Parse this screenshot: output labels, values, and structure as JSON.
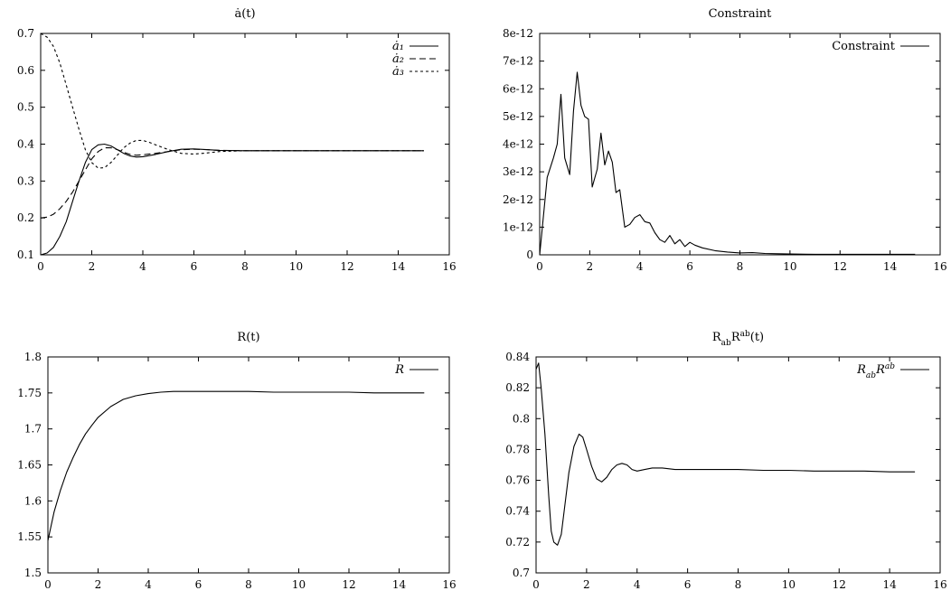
{
  "chart_data": [
    {
      "type": "line",
      "title": "ȧ(t)",
      "xlim": [
        0,
        16
      ],
      "ylim": [
        0.1,
        0.7
      ],
      "xticks": [
        0,
        2,
        4,
        6,
        8,
        10,
        12,
        14,
        16
      ],
      "yticks": [
        0.1,
        0.2,
        0.3,
        0.4,
        0.5,
        0.6,
        0.7
      ],
      "ytick_labels": [
        "0.1",
        "0.2",
        "0.3",
        "0.4",
        "0.5",
        "0.6",
        "0.7"
      ],
      "grid": false,
      "legend_position": "top-right",
      "series": [
        {
          "name": "ȧ₁",
          "dash": "solid",
          "x": [
            0,
            0.25,
            0.5,
            0.75,
            1,
            1.25,
            1.5,
            1.75,
            2,
            2.25,
            2.5,
            2.75,
            3,
            3.25,
            3.5,
            3.75,
            4,
            4.5,
            5,
            5.5,
            6,
            6.5,
            7,
            8,
            9,
            10,
            11,
            12,
            13,
            14,
            15
          ],
          "y": [
            0.1,
            0.105,
            0.12,
            0.15,
            0.19,
            0.245,
            0.3,
            0.35,
            0.385,
            0.398,
            0.4,
            0.395,
            0.385,
            0.375,
            0.368,
            0.365,
            0.366,
            0.372,
            0.38,
            0.386,
            0.387,
            0.385,
            0.383,
            0.382,
            0.382,
            0.382,
            0.382,
            0.382,
            0.382,
            0.382,
            0.382
          ]
        },
        {
          "name": "ȧ₂",
          "dash": "long",
          "x": [
            0,
            0.25,
            0.5,
            0.75,
            1,
            1.25,
            1.5,
            1.75,
            2,
            2.25,
            2.5,
            2.75,
            3,
            3.25,
            3.5,
            3.75,
            4,
            4.5,
            5,
            5.5,
            6,
            6.5,
            7,
            8,
            9,
            10,
            11,
            12,
            13,
            14,
            15
          ],
          "y": [
            0.2,
            0.202,
            0.21,
            0.225,
            0.245,
            0.27,
            0.3,
            0.33,
            0.36,
            0.38,
            0.39,
            0.39,
            0.385,
            0.378,
            0.372,
            0.37,
            0.371,
            0.375,
            0.38,
            0.385,
            0.386,
            0.385,
            0.383,
            0.382,
            0.382,
            0.382,
            0.382,
            0.382,
            0.382,
            0.382,
            0.382
          ]
        },
        {
          "name": "ȧ₃",
          "dash": "short",
          "x": [
            0,
            0.25,
            0.5,
            0.75,
            1,
            1.25,
            1.5,
            1.75,
            2,
            2.25,
            2.5,
            2.75,
            3,
            3.25,
            3.5,
            3.75,
            4,
            4.25,
            4.5,
            5,
            5.5,
            6,
            6.5,
            7,
            8,
            9,
            10,
            11,
            12,
            13,
            14,
            15
          ],
          "y": [
            0.7,
            0.69,
            0.665,
            0.62,
            0.56,
            0.5,
            0.44,
            0.385,
            0.35,
            0.335,
            0.336,
            0.35,
            0.37,
            0.39,
            0.403,
            0.41,
            0.41,
            0.405,
            0.398,
            0.385,
            0.375,
            0.373,
            0.376,
            0.38,
            0.382,
            0.382,
            0.382,
            0.382,
            0.382,
            0.382,
            0.382,
            0.382
          ]
        }
      ]
    },
    {
      "type": "line",
      "title": "Constraint",
      "xlim": [
        0,
        16
      ],
      "ylim": [
        0,
        8e-12
      ],
      "xticks": [
        0,
        2,
        4,
        6,
        8,
        10,
        12,
        14,
        16
      ],
      "yticks": [
        0,
        1e-12,
        2e-12,
        3e-12,
        4e-12,
        5e-12,
        6e-12,
        7e-12,
        8e-12
      ],
      "ytick_labels": [
        "0",
        "1e-12",
        "2e-12",
        "3e-12",
        "4e-12",
        "5e-12",
        "6e-12",
        "7e-12",
        "8e-12"
      ],
      "grid": false,
      "legend_position": "top-right",
      "series": [
        {
          "name": "Constraint",
          "dash": "solid",
          "x": [
            0,
            0.3,
            0.55,
            0.7,
            0.85,
            1.0,
            1.2,
            1.35,
            1.5,
            1.65,
            1.8,
            1.95,
            2.1,
            2.3,
            2.45,
            2.6,
            2.75,
            2.9,
            3.05,
            3.2,
            3.4,
            3.6,
            3.8,
            4.0,
            4.2,
            4.4,
            4.6,
            4.8,
            5.0,
            5.2,
            5.4,
            5.6,
            5.8,
            6.0,
            6.2,
            6.5,
            7.0,
            7.5,
            8.0,
            8.5,
            9,
            9.5,
            10,
            11,
            12,
            13,
            14,
            15
          ],
          "y": [
            0,
            2.8e-12,
            3.5e-12,
            4e-12,
            5.8e-12,
            3.5e-12,
            2.9e-12,
            5.2e-12,
            6.6e-12,
            5.4e-12,
            5e-12,
            4.9e-12,
            2.45e-12,
            3.1e-12,
            4.4e-12,
            3.25e-12,
            3.75e-12,
            3.35e-12,
            2.25e-12,
            2.35e-12,
            1e-12,
            1.1e-12,
            1.35e-12,
            1.45e-12,
            1.2e-12,
            1.15e-12,
            8e-13,
            5.5e-13,
            4.5e-13,
            7e-13,
            4e-13,
            5.5e-13,
            3e-13,
            4.5e-13,
            3.5e-13,
            2.5e-13,
            1.5e-13,
            1e-13,
            7e-14,
            8e-14,
            5e-14,
            4e-14,
            3e-14,
            2e-14,
            2e-14,
            2e-14,
            2e-14,
            2e-14
          ]
        }
      ]
    },
    {
      "type": "line",
      "title": "R(t)",
      "xlim": [
        0,
        16
      ],
      "ylim": [
        1.5,
        1.8
      ],
      "xticks": [
        0,
        2,
        4,
        6,
        8,
        10,
        12,
        14,
        16
      ],
      "yticks": [
        1.5,
        1.55,
        1.6,
        1.65,
        1.7,
        1.75,
        1.8
      ],
      "ytick_labels": [
        "1.5",
        "1.55",
        "1.6",
        "1.65",
        "1.7",
        "1.75",
        "1.8"
      ],
      "grid": false,
      "legend_position": "top-right",
      "series": [
        {
          "name": "R",
          "dash": "solid",
          "x": [
            0,
            0.25,
            0.5,
            0.75,
            1,
            1.25,
            1.5,
            1.75,
            2,
            2.5,
            3,
            3.5,
            4,
            4.5,
            5,
            6,
            7,
            8,
            9,
            10,
            11,
            12,
            13,
            14,
            15
          ],
          "y": [
            1.545,
            1.585,
            1.615,
            1.64,
            1.66,
            1.678,
            1.693,
            1.705,
            1.716,
            1.731,
            1.741,
            1.746,
            1.749,
            1.751,
            1.752,
            1.752,
            1.752,
            1.752,
            1.751,
            1.751,
            1.751,
            1.751,
            1.75,
            1.75,
            1.75
          ]
        }
      ]
    },
    {
      "type": "line",
      "title": "R_{ab}R^{ab}(t)",
      "xlim": [
        0,
        16
      ],
      "ylim": [
        0.7,
        0.84
      ],
      "xticks": [
        0,
        2,
        4,
        6,
        8,
        10,
        12,
        14,
        16
      ],
      "yticks": [
        0.7,
        0.72,
        0.74,
        0.76,
        0.78,
        0.8,
        0.82,
        0.84
      ],
      "ytick_labels": [
        "0.7",
        "0.72",
        "0.74",
        "0.76",
        "0.78",
        "0.8",
        "0.82",
        "0.84"
      ],
      "grid": false,
      "legend_position": "top-right",
      "series": [
        {
          "name": "R_{ab}R^{ab}",
          "dash": "solid",
          "x": [
            0,
            0.1,
            0.2,
            0.35,
            0.5,
            0.6,
            0.7,
            0.85,
            1.0,
            1.15,
            1.3,
            1.5,
            1.7,
            1.85,
            2.0,
            2.2,
            2.4,
            2.6,
            2.8,
            3.0,
            3.2,
            3.4,
            3.6,
            3.8,
            4.0,
            4.3,
            4.6,
            5.0,
            5.5,
            6,
            7,
            8,
            9,
            10,
            11,
            12,
            13,
            14,
            15
          ],
          "y": [
            0.832,
            0.836,
            0.82,
            0.79,
            0.75,
            0.727,
            0.72,
            0.718,
            0.725,
            0.745,
            0.765,
            0.782,
            0.79,
            0.788,
            0.78,
            0.769,
            0.761,
            0.759,
            0.762,
            0.767,
            0.77,
            0.771,
            0.77,
            0.767,
            0.766,
            0.767,
            0.768,
            0.768,
            0.767,
            0.767,
            0.767,
            0.767,
            0.7665,
            0.7665,
            0.766,
            0.766,
            0.766,
            0.7655,
            0.7655
          ]
        }
      ]
    }
  ]
}
